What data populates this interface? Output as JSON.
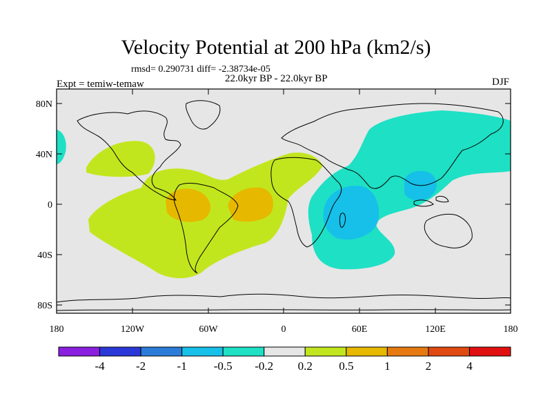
{
  "title": "Velocity Potential at 200 hPa (km2/s)",
  "stats": "rmsd= 0.290731 diff= -2.38734e-05",
  "period": "22.0kyr BP - 22.0kyr BP",
  "expt": "Expt = temiw-temaw",
  "season": "DJF",
  "lat_labels": [
    "80N",
    "40N",
    "0",
    "40S",
    "80S"
  ],
  "lon_labels": [
    "180",
    "120W",
    "60W",
    "0",
    "60E",
    "120E",
    "180"
  ],
  "colorbar": {
    "colors": [
      "#8a1fe0",
      "#2a38d8",
      "#2a7cd8",
      "#16c0e8",
      "#1ee0c4",
      "#e6e6e6",
      "#c2e61e",
      "#e6b800",
      "#e67a10",
      "#e04a10",
      "#e01010"
    ],
    "labels": [
      "-4",
      "-2",
      "-1",
      "-0.5",
      "-0.2",
      "0.2",
      "0.5",
      "1",
      "2",
      "4"
    ]
  },
  "regions": [
    {
      "name": "n-atlantic-positive",
      "level": "0.2 to 0.5"
    },
    {
      "name": "trop-america-positive",
      "level": "0.2 to 0.5"
    },
    {
      "name": "pacific-max",
      "level": "0.5 to 1"
    },
    {
      "name": "atlantic-max",
      "level": "0.5 to 1"
    },
    {
      "name": "asia-indian-negative",
      "level": "-0.5 to -0.2"
    },
    {
      "name": "west-edge-negative",
      "level": "-0.5 to -0.2"
    },
    {
      "name": "indian-ocean-min",
      "level": "-1 to -0.5"
    },
    {
      "name": "west-pacific-min",
      "level": "-1 to -0.5"
    }
  ]
}
